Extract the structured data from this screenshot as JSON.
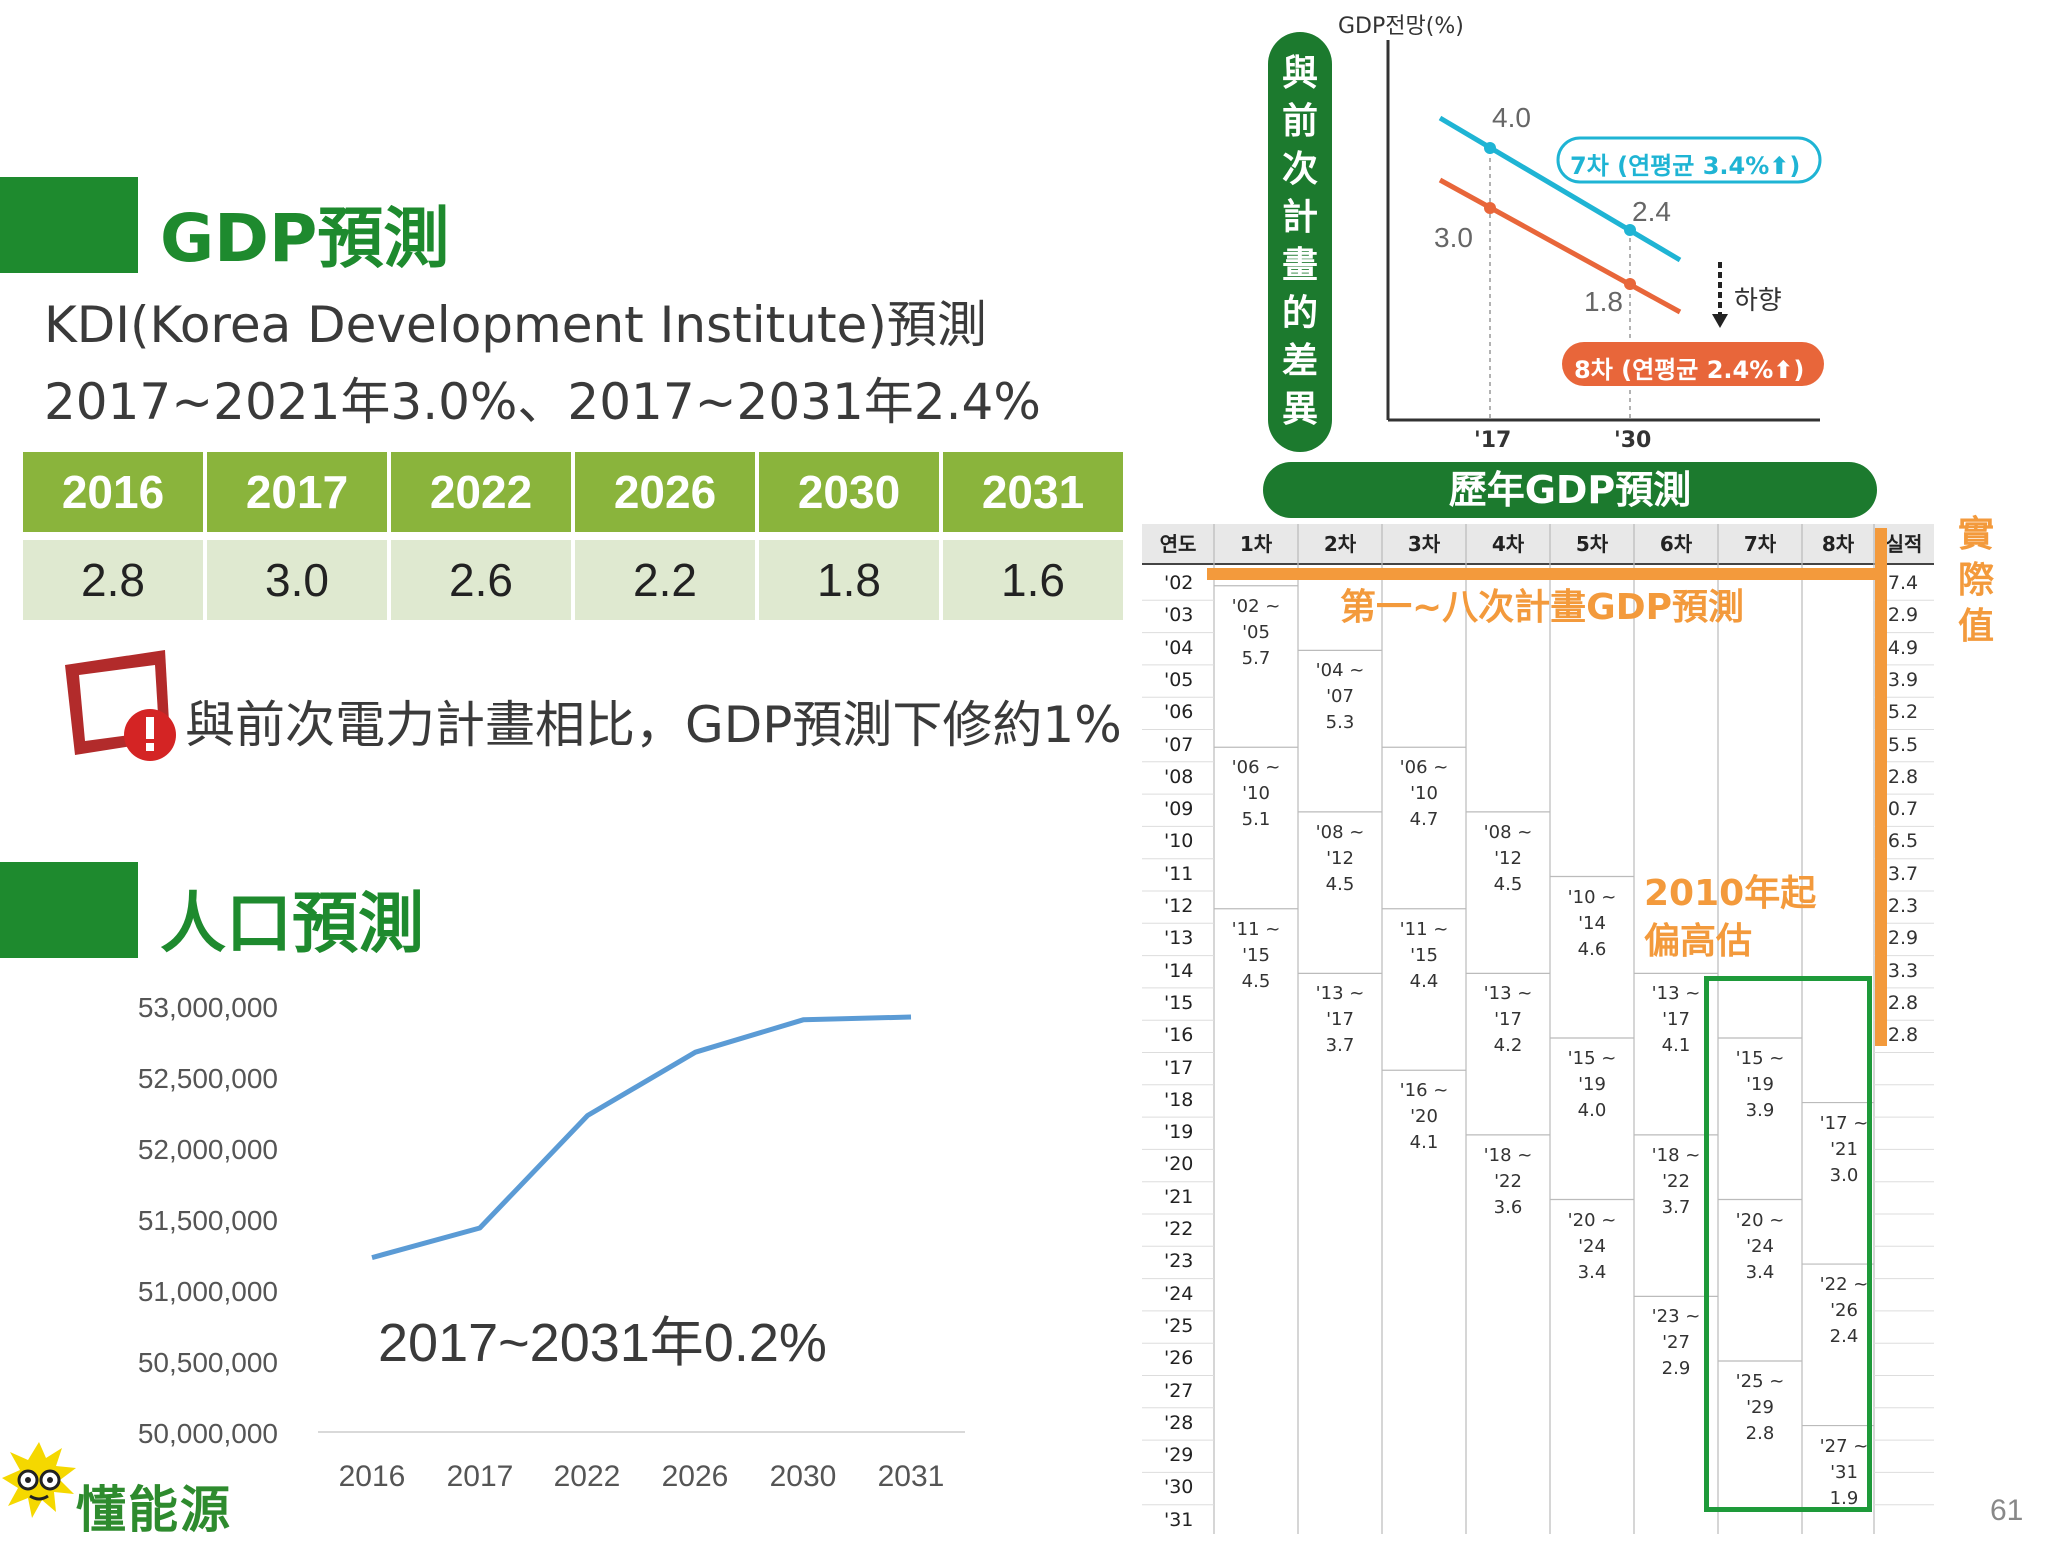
{
  "gdp_section": {
    "title": "GDP預測",
    "line1": "KDI(Korea Development Institute)預測",
    "line2": "2017~2021年3.0%、2017~2031年2.4%",
    "table": {
      "years": [
        "2016",
        "2017",
        "2022",
        "2026",
        "2030",
        "2031"
      ],
      "values": [
        "2.8",
        "3.0",
        "2.6",
        "2.2",
        "1.8",
        "1.6"
      ]
    },
    "warning_text": "與前次電力計畫相比，GDP預測下修約1%"
  },
  "population_section": {
    "title": "人口預測",
    "annotation": "2017~2031年0.2%",
    "chart_data": {
      "type": "line",
      "categories": [
        "2016",
        "2017",
        "2022",
        "2026",
        "2030",
        "2031"
      ],
      "values": [
        51240000,
        51450000,
        52250000,
        52700000,
        52930000,
        52950000
      ],
      "ylim": [
        50000000,
        53000000
      ],
      "y_ticks": [
        "53,000,000",
        "52,500,000",
        "52,000,000",
        "51,500,000",
        "51,000,000",
        "50,500,000",
        "50,000,000"
      ],
      "line_color": "#5b9bd5",
      "grid": false
    }
  },
  "korean_chart": {
    "y_label": "GDP전망(%)",
    "x_ticks": [
      "'17",
      "'30"
    ],
    "label_4_0": "4.0",
    "label_2_4": "2.4",
    "label_3_0": "3.0",
    "label_1_8": "1.8",
    "badge_7": "7차 (연평균 3.4%⬆)",
    "badge_8": "8차 (연평균 2.4%⬆)",
    "down_label": "하향",
    "color_7": "#1fb4d4",
    "color_8": "#e8663a"
  },
  "vertical_banner": [
    "與",
    "前",
    "次",
    "計",
    "畫",
    "的",
    "差",
    "異"
  ],
  "history_banner": "歷年GDP預測",
  "history_table": {
    "headers": [
      "연도",
      "1차",
      "2차",
      "3차",
      "4차",
      "5차",
      "6차",
      "7차",
      "8차",
      "실적"
    ],
    "years": [
      "'02",
      "'03",
      "'04",
      "'05",
      "'06",
      "'07",
      "'08",
      "'09",
      "'10",
      "'11",
      "'12",
      "'13",
      "'14",
      "'15",
      "'16",
      "'17",
      "'18",
      "'19",
      "'20",
      "'21",
      "'22",
      "'23",
      "'24",
      "'25",
      "'26",
      "'27",
      "'28",
      "'29",
      "'30",
      "'31"
    ],
    "actual": [
      "7.4",
      "2.9",
      "4.9",
      "3.9",
      "5.2",
      "5.5",
      "2.8",
      "0.7",
      "6.5",
      "3.7",
      "2.3",
      "2.9",
      "3.3",
      "2.8",
      "2.8"
    ],
    "cells": [
      {
        "col": 1,
        "row": 1,
        "range": "'02 ~ '05",
        "val": "5.7"
      },
      {
        "col": 1,
        "row": 6,
        "range": "'06 ~ '10",
        "val": "5.1"
      },
      {
        "col": 1,
        "row": 11,
        "range": "'11 ~ '15",
        "val": "4.5"
      },
      {
        "col": 2,
        "row": 3,
        "range": "'04 ~ '07",
        "val": "5.3"
      },
      {
        "col": 2,
        "row": 8,
        "range": "'08 ~ '12",
        "val": "4.5"
      },
      {
        "col": 2,
        "row": 13,
        "range": "'13 ~ '17",
        "val": "3.7"
      },
      {
        "col": 3,
        "row": 6,
        "range": "'06 ~ '10",
        "val": "4.7"
      },
      {
        "col": 3,
        "row": 11,
        "range": "'11 ~ '15",
        "val": "4.4"
      },
      {
        "col": 3,
        "row": 16,
        "range": "'16 ~ '20",
        "val": "4.1"
      },
      {
        "col": 4,
        "row": 8,
        "range": "'08 ~ '12",
        "val": "4.5"
      },
      {
        "col": 4,
        "row": 13,
        "range": "'13 ~ '17",
        "val": "4.2"
      },
      {
        "col": 4,
        "row": 18,
        "range": "'18 ~ '22",
        "val": "3.6"
      },
      {
        "col": 5,
        "row": 10,
        "range": "'10 ~ '14",
        "val": "4.6"
      },
      {
        "col": 5,
        "row": 15,
        "range": "'15 ~ '19",
        "val": "4.0"
      },
      {
        "col": 5,
        "row": 20,
        "range": "'20 ~ '24",
        "val": "3.4"
      },
      {
        "col": 6,
        "row": 13,
        "range": "'13 ~ '17",
        "val": "4.1"
      },
      {
        "col": 6,
        "row": 18,
        "range": "'18 ~ '22",
        "val": "3.7"
      },
      {
        "col": 6,
        "row": 23,
        "range": "'23 ~ '27",
        "val": "2.9"
      },
      {
        "col": 7,
        "row": 15,
        "range": "'15 ~ '19",
        "val": "3.9"
      },
      {
        "col": 7,
        "row": 20,
        "range": "'20 ~ '24",
        "val": "3.4"
      },
      {
        "col": 7,
        "row": 25,
        "range": "'25 ~ '29",
        "val": "2.8"
      },
      {
        "col": 8,
        "row": 17,
        "range": "'17 ~ '21",
        "val": "3.0"
      },
      {
        "col": 8,
        "row": 22,
        "range": "'22 ~ '26",
        "val": "2.4"
      },
      {
        "col": 8,
        "row": 27,
        "range": "'27 ~ '31",
        "val": "1.9"
      }
    ],
    "overlay_plans": "第一~八次計畫GDP預測",
    "overlay_actual": "實際值",
    "overlay_over_1": "2010年起",
    "overlay_over_2": "偏高估",
    "orange": "#f39a3c",
    "green_box": "#1e9a3a"
  },
  "logo_text": "懂能源",
  "page_number": "61"
}
